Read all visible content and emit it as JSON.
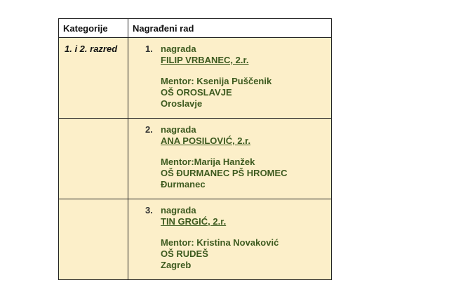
{
  "header": {
    "col1": "Kategorije",
    "col2": "Nagrađeni rad"
  },
  "colors": {
    "text_green": "#3d5a1f",
    "cell_bg": "#fcefc9"
  },
  "rows": [
    {
      "category": "1. i 2. razred",
      "number": "1.",
      "award": "nagrada",
      "name": "FILIP VRBANEC, 2.r.",
      "mentor": "Mentor: Ksenija Puščenik",
      "school": "OŠ OROSLAVJE",
      "town": "Oroslavje"
    },
    {
      "category": "",
      "number": "2.",
      "award": "nagrada",
      "name": "ANA POSILOVIĆ, 2.r.",
      "mentor": "Mentor:Marija Hanžek",
      "school": "OŠ ĐURMANEC PŠ HROMEC",
      "town": "Đurmanec"
    },
    {
      "category": "",
      "number": "3.",
      "award": "nagrada",
      "name": "TIN GRGIĆ, 2.r.",
      "mentor": "Mentor: Kristina Novaković",
      "school": "OŠ RUDEŠ",
      "town": "Zagreb"
    }
  ]
}
